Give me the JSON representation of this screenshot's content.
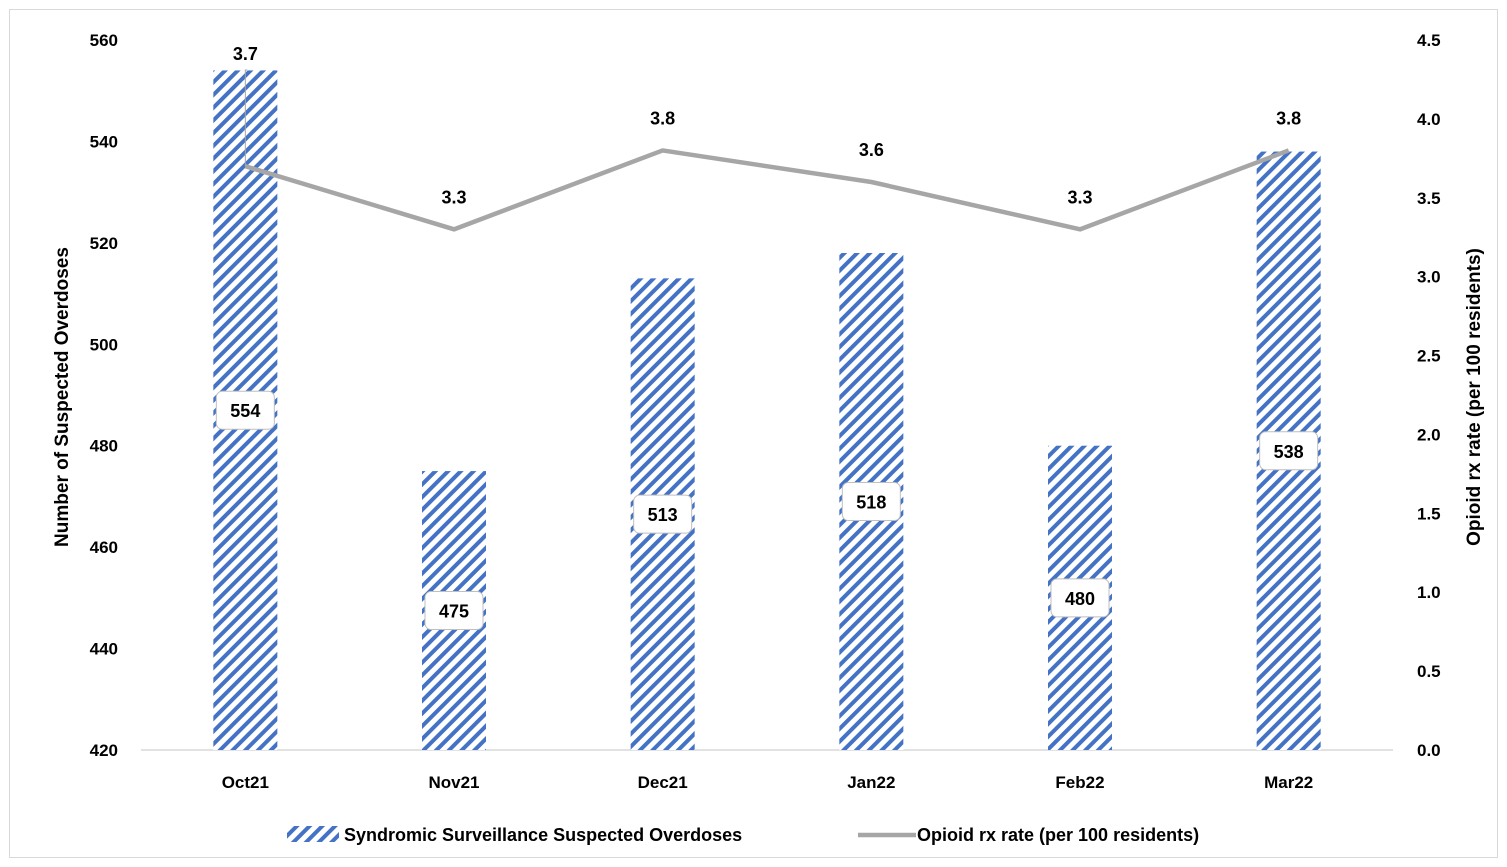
{
  "chart_data": {
    "type": "bar",
    "categories": [
      "Oct21",
      "Nov21",
      "Dec21",
      "Jan22",
      "Feb22",
      "Mar22"
    ],
    "series": [
      {
        "name": "Syndromic Surveillance Suspected Overdoses",
        "type": "bar",
        "axis": "left",
        "values": [
          554,
          475,
          513,
          518,
          480,
          538
        ],
        "data_labels": [
          "554",
          "475",
          "513",
          "518",
          "480",
          "538"
        ],
        "color": "#4472c4",
        "pattern": "diagonal-stripes"
      },
      {
        "name": "Opioid rx rate (per 100 residents)",
        "type": "line",
        "axis": "right",
        "values": [
          3.7,
          3.3,
          3.8,
          3.6,
          3.3,
          3.8
        ],
        "data_labels": [
          "3.7",
          "3.3",
          "3.8",
          "3.6",
          "3.3",
          "3.8"
        ],
        "color": "#a6a6a6"
      }
    ],
    "y_left": {
      "label": "Number of Suspected Overdoses",
      "ylim": [
        420,
        560
      ],
      "ticks": [
        "420",
        "440",
        "460",
        "480",
        "500",
        "520",
        "540",
        "560"
      ]
    },
    "y_right": {
      "label": "Opioid rx rate (per 100 residents)",
      "ylim": [
        0,
        4.5
      ],
      "ticks": [
        "0.0",
        "0.5",
        "1.0",
        "1.5",
        "2.0",
        "2.5",
        "3.0",
        "3.5",
        "4.0",
        "4.5"
      ]
    },
    "grid": false,
    "legend_position": "bottom"
  }
}
